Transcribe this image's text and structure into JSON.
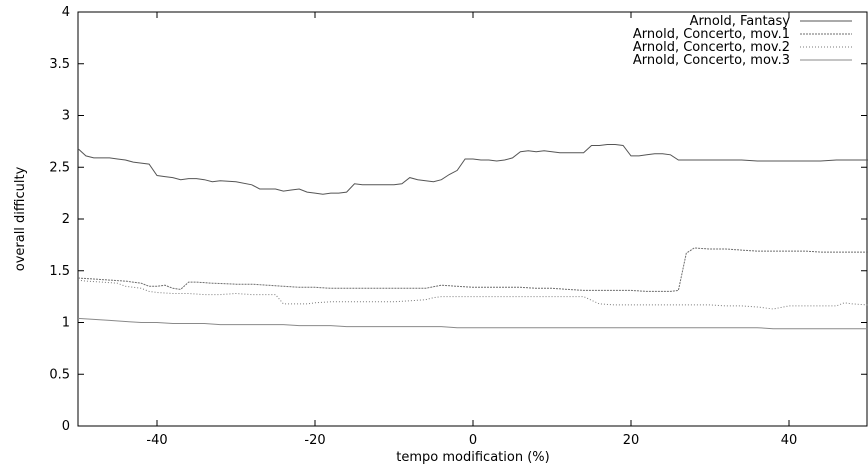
{
  "chart_data": {
    "type": "line",
    "title": "",
    "xlabel": "tempo modification (%)",
    "ylabel": "overall difficulty",
    "xlim": [
      -50,
      50
    ],
    "ylim": [
      0,
      4
    ],
    "x_ticks": [
      -40,
      -20,
      0,
      20,
      40
    ],
    "y_ticks": [
      0,
      0.5,
      1,
      1.5,
      2,
      2.5,
      3,
      3.5,
      4
    ],
    "x_tick_labels": [
      "-40",
      "-20",
      "0",
      "20",
      "40"
    ],
    "y_tick_labels": [
      "0",
      "0.5",
      "1",
      "1.5",
      "2",
      "2.5",
      "3",
      "3.5",
      "4"
    ],
    "grid": false,
    "legend_position": "top-right",
    "series": [
      {
        "name": "Arnold, Fantasy",
        "color": "#555555",
        "x": [
          -50,
          -49,
          -48,
          -46,
          -45,
          -44,
          -43,
          -42,
          -41,
          -40,
          -39,
          -38,
          -37,
          -36,
          -35,
          -34,
          -33,
          -32,
          -30,
          -28,
          -27,
          -26,
          -25,
          -24,
          -23,
          -22,
          -21,
          -20,
          -19,
          -18,
          -17,
          -16,
          -15,
          -14,
          -12,
          -10,
          -9,
          -8,
          -7,
          -6,
          -5,
          -4,
          -3,
          -2,
          -1,
          0,
          1,
          2,
          3,
          4,
          5,
          6,
          7,
          8,
          9,
          10,
          11,
          12,
          14,
          15,
          16,
          17,
          18,
          19,
          20,
          21,
          22,
          23,
          24,
          25,
          26,
          28,
          30,
          32,
          34,
          36,
          38,
          40,
          42,
          44,
          46,
          48,
          50
        ],
        "y": [
          2.68,
          2.61,
          2.59,
          2.59,
          2.58,
          2.57,
          2.55,
          2.54,
          2.53,
          2.42,
          2.41,
          2.4,
          2.38,
          2.39,
          2.39,
          2.38,
          2.36,
          2.37,
          2.36,
          2.33,
          2.29,
          2.29,
          2.29,
          2.27,
          2.28,
          2.29,
          2.26,
          2.25,
          2.24,
          2.25,
          2.25,
          2.26,
          2.34,
          2.33,
          2.33,
          2.33,
          2.34,
          2.4,
          2.38,
          2.37,
          2.36,
          2.38,
          2.43,
          2.47,
          2.58,
          2.58,
          2.57,
          2.57,
          2.56,
          2.57,
          2.59,
          2.65,
          2.66,
          2.65,
          2.66,
          2.65,
          2.64,
          2.64,
          2.64,
          2.71,
          2.71,
          2.72,
          2.72,
          2.71,
          2.61,
          2.61,
          2.62,
          2.63,
          2.63,
          2.62,
          2.57,
          2.57,
          2.57,
          2.57,
          2.57,
          2.56,
          2.56,
          2.56,
          2.56,
          2.56,
          2.57,
          2.57,
          2.57
        ]
      },
      {
        "name": "Arnold, Concerto, mov.1",
        "color": "#6e6e6e",
        "x": [
          -50,
          -48,
          -46,
          -44,
          -42,
          -41,
          -40,
          -39,
          -38,
          -37,
          -36,
          -35,
          -33,
          -30,
          -28,
          -26,
          -24,
          -22,
          -20,
          -18,
          -16,
          -14,
          -12,
          -10,
          -8,
          -6,
          -4,
          -2,
          0,
          2,
          4,
          6,
          8,
          10,
          12,
          14,
          16,
          18,
          20,
          22,
          24,
          25,
          26,
          27,
          28,
          30,
          32,
          34,
          36,
          38,
          40,
          42,
          44,
          46,
          48,
          50
        ],
        "y": [
          1.43,
          1.42,
          1.41,
          1.4,
          1.38,
          1.35,
          1.35,
          1.36,
          1.33,
          1.32,
          1.39,
          1.39,
          1.38,
          1.37,
          1.37,
          1.36,
          1.35,
          1.34,
          1.34,
          1.33,
          1.33,
          1.33,
          1.33,
          1.33,
          1.33,
          1.33,
          1.36,
          1.35,
          1.34,
          1.34,
          1.34,
          1.34,
          1.33,
          1.33,
          1.32,
          1.31,
          1.31,
          1.31,
          1.31,
          1.3,
          1.3,
          1.3,
          1.31,
          1.67,
          1.72,
          1.71,
          1.71,
          1.7,
          1.69,
          1.69,
          1.69,
          1.69,
          1.68,
          1.68,
          1.68,
          1.68
        ]
      },
      {
        "name": "Arnold, Concerto, mov.2",
        "color": "#7a7a7a",
        "x": [
          -50,
          -49,
          -47,
          -45,
          -44,
          -43,
          -42,
          -41,
          -40,
          -38,
          -36,
          -34,
          -32,
          -30,
          -28,
          -26,
          -25,
          -24,
          -23,
          -22,
          -21,
          -20,
          -18,
          -16,
          -14,
          -12,
          -10,
          -8,
          -6,
          -5,
          -4,
          -2,
          0,
          2,
          4,
          6,
          8,
          10,
          12,
          14,
          16,
          18,
          20,
          22,
          24,
          26,
          28,
          30,
          32,
          34,
          36,
          37,
          38,
          40,
          42,
          44,
          46,
          47,
          48,
          50
        ],
        "y": [
          1.41,
          1.4,
          1.39,
          1.38,
          1.35,
          1.34,
          1.33,
          1.3,
          1.29,
          1.28,
          1.28,
          1.27,
          1.27,
          1.28,
          1.27,
          1.27,
          1.27,
          1.18,
          1.18,
          1.18,
          1.18,
          1.19,
          1.2,
          1.2,
          1.2,
          1.2,
          1.2,
          1.21,
          1.22,
          1.24,
          1.25,
          1.25,
          1.25,
          1.25,
          1.25,
          1.25,
          1.25,
          1.25,
          1.25,
          1.25,
          1.18,
          1.17,
          1.17,
          1.17,
          1.17,
          1.17,
          1.17,
          1.17,
          1.16,
          1.16,
          1.15,
          1.14,
          1.13,
          1.16,
          1.16,
          1.16,
          1.16,
          1.19,
          1.18,
          1.17
        ]
      },
      {
        "name": "Arnold, Concerto, mov.3",
        "color": "#8a8a8a",
        "x": [
          -50,
          -48,
          -46,
          -44,
          -42,
          -40,
          -38,
          -36,
          -34,
          -32,
          -30,
          -28,
          -26,
          -24,
          -22,
          -20,
          -18,
          -16,
          -14,
          -12,
          -10,
          -8,
          -6,
          -4,
          -2,
          0,
          2,
          4,
          6,
          8,
          10,
          12,
          14,
          16,
          18,
          20,
          22,
          24,
          26,
          28,
          30,
          32,
          34,
          36,
          38,
          40,
          42,
          44,
          46,
          48,
          50
        ],
        "y": [
          1.04,
          1.03,
          1.02,
          1.01,
          1.0,
          1.0,
          0.99,
          0.99,
          0.99,
          0.98,
          0.98,
          0.98,
          0.98,
          0.98,
          0.97,
          0.97,
          0.97,
          0.96,
          0.96,
          0.96,
          0.96,
          0.96,
          0.96,
          0.96,
          0.95,
          0.95,
          0.95,
          0.95,
          0.95,
          0.95,
          0.95,
          0.95,
          0.95,
          0.95,
          0.95,
          0.95,
          0.95,
          0.95,
          0.95,
          0.95,
          0.95,
          0.95,
          0.95,
          0.95,
          0.94,
          0.94,
          0.94,
          0.94,
          0.94,
          0.94,
          0.94
        ]
      }
    ]
  }
}
